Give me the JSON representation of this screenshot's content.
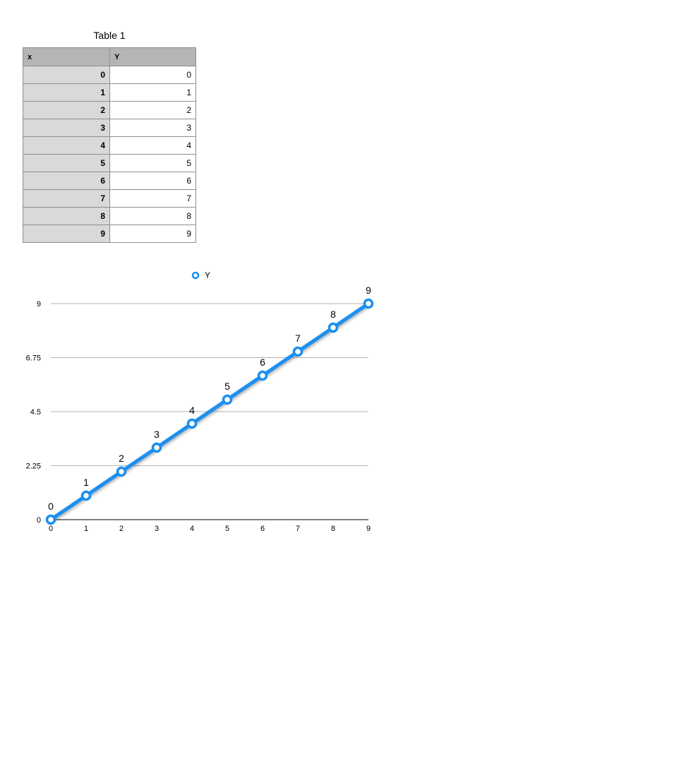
{
  "table": {
    "title": "Table 1",
    "headers": [
      "x",
      "Y"
    ],
    "rows": [
      [
        "0",
        "0"
      ],
      [
        "1",
        "1"
      ],
      [
        "2",
        "2"
      ],
      [
        "3",
        "3"
      ],
      [
        "4",
        "4"
      ],
      [
        "5",
        "5"
      ],
      [
        "6",
        "6"
      ],
      [
        "7",
        "7"
      ],
      [
        "8",
        "8"
      ],
      [
        "9",
        "9"
      ]
    ]
  },
  "chart_data": {
    "type": "line",
    "x": [
      0,
      1,
      2,
      3,
      4,
      5,
      6,
      7,
      8,
      9
    ],
    "series": [
      {
        "name": "Y",
        "values": [
          0,
          1,
          2,
          3,
          4,
          5,
          6,
          7,
          8,
          9
        ],
        "color": "#1a8ff0"
      }
    ],
    "data_labels": [
      "0",
      "1",
      "2",
      "3",
      "4",
      "5",
      "6",
      "7",
      "8",
      "9"
    ],
    "x_ticks": [
      "0",
      "1",
      "2",
      "3",
      "4",
      "5",
      "6",
      "7",
      "8",
      "9"
    ],
    "y_ticks": [
      "0",
      "2.25",
      "4.5",
      "6.75",
      "9"
    ],
    "y_tick_values": [
      0,
      2.25,
      4.5,
      6.75,
      9
    ],
    "xlim": [
      0,
      9
    ],
    "ylim": [
      0,
      9
    ],
    "grid": true,
    "legend_position": "top",
    "title": "",
    "xlabel": "",
    "ylabel": ""
  }
}
